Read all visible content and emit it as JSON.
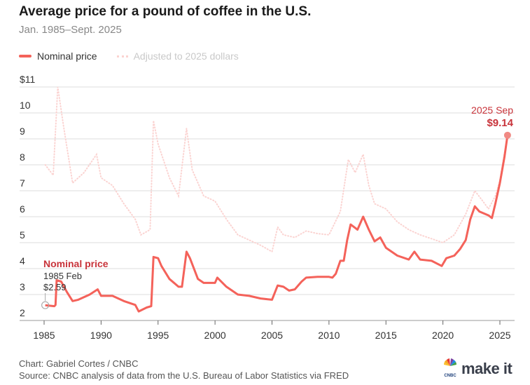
{
  "title": "Average price for a pound of coffee in the U.S.",
  "subtitle": "Jan. 1985–Sept. 2025",
  "footer": {
    "credit": "Chart: Gabriel Cortes / CNBC",
    "source": "Source: CNBC analysis of data from the U.S. Bureau of Labor Statistics via FRED",
    "logo": "make it",
    "logo_small": "CNBC"
  },
  "chart_data": {
    "type": "line",
    "title": "Average price for a pound of coffee in the U.S.",
    "xlim": [
      1985,
      2025.8
    ],
    "ylim": [
      2,
      11
    ],
    "grid": true,
    "legend": "top-left",
    "x_ticks": [
      "1985",
      "1990",
      "1995",
      "2000",
      "2005",
      "2010",
      "2015",
      "2020",
      "2025"
    ],
    "y_ticks": [
      "$11",
      "10",
      "9",
      "8",
      "7",
      "6",
      "5",
      "4",
      "3",
      "2"
    ],
    "colors": {
      "nominal": "#f4625a",
      "adjusted": "#fbd3d1",
      "annotation": "#c8333a"
    },
    "series": [
      {
        "name": "Nominal price",
        "style": "solid",
        "points": [
          [
            1985.1,
            2.59
          ],
          [
            1985.9,
            2.55
          ],
          [
            1986.0,
            2.6
          ],
          [
            1986.1,
            3.55
          ],
          [
            1986.5,
            3.5
          ],
          [
            1987.0,
            3.1
          ],
          [
            1987.5,
            2.75
          ],
          [
            1988,
            2.8
          ],
          [
            1989,
            3.0
          ],
          [
            1989.7,
            3.2
          ],
          [
            1990,
            2.95
          ],
          [
            1991,
            2.95
          ],
          [
            1992,
            2.75
          ],
          [
            1993,
            2.6
          ],
          [
            1993.3,
            2.35
          ],
          [
            1994,
            2.5
          ],
          [
            1994.4,
            2.55
          ],
          [
            1994.6,
            4.45
          ],
          [
            1995,
            4.4
          ],
          [
            1995.3,
            4.1
          ],
          [
            1996,
            3.6
          ],
          [
            1996.8,
            3.3
          ],
          [
            1997.1,
            3.3
          ],
          [
            1997.5,
            4.65
          ],
          [
            1997.8,
            4.4
          ],
          [
            1998.5,
            3.6
          ],
          [
            1999,
            3.45
          ],
          [
            2000,
            3.45
          ],
          [
            2000.2,
            3.65
          ],
          [
            2001,
            3.3
          ],
          [
            2002,
            3.0
          ],
          [
            2003,
            2.95
          ],
          [
            2004,
            2.85
          ],
          [
            2005,
            2.8
          ],
          [
            2005.5,
            3.35
          ],
          [
            2006,
            3.3
          ],
          [
            2006.5,
            3.15
          ],
          [
            2007,
            3.2
          ],
          [
            2007.6,
            3.5
          ],
          [
            2008,
            3.65
          ],
          [
            2009,
            3.68
          ],
          [
            2010,
            3.68
          ],
          [
            2010.3,
            3.65
          ],
          [
            2010.6,
            3.8
          ],
          [
            2011,
            4.3
          ],
          [
            2011.3,
            4.3
          ],
          [
            2011.6,
            5.1
          ],
          [
            2011.9,
            5.7
          ],
          [
            2012.5,
            5.5
          ],
          [
            2013,
            6.0
          ],
          [
            2013.5,
            5.5
          ],
          [
            2014,
            5.05
          ],
          [
            2014.5,
            5.2
          ],
          [
            2015,
            4.8
          ],
          [
            2016,
            4.5
          ],
          [
            2017,
            4.35
          ],
          [
            2017.5,
            4.65
          ],
          [
            2018,
            4.35
          ],
          [
            2019,
            4.3
          ],
          [
            2019.9,
            4.1
          ],
          [
            2020.3,
            4.4
          ],
          [
            2021,
            4.5
          ],
          [
            2021.5,
            4.75
          ],
          [
            2022,
            5.1
          ],
          [
            2022.4,
            5.9
          ],
          [
            2022.8,
            6.4
          ],
          [
            2023.2,
            6.2
          ],
          [
            2024,
            6.05
          ],
          [
            2024.3,
            5.95
          ],
          [
            2024.6,
            6.5
          ],
          [
            2025,
            7.3
          ],
          [
            2025.4,
            8.3
          ],
          [
            2025.67,
            9.14
          ]
        ]
      },
      {
        "name": "Adjusted to 2025 dollars",
        "style": "dotted",
        "points": [
          [
            1985.1,
            8.0
          ],
          [
            1985.8,
            7.6
          ],
          [
            1986.2,
            11.0
          ],
          [
            1986.7,
            9.5
          ],
          [
            1987.5,
            7.3
          ],
          [
            1988.5,
            7.7
          ],
          [
            1989.6,
            8.4
          ],
          [
            1990,
            7.5
          ],
          [
            1991,
            7.2
          ],
          [
            1992,
            6.5
          ],
          [
            1993,
            5.9
          ],
          [
            1993.5,
            5.3
          ],
          [
            1994.3,
            5.5
          ],
          [
            1994.6,
            9.7
          ],
          [
            1995,
            8.8
          ],
          [
            1996,
            7.5
          ],
          [
            1996.8,
            6.8
          ],
          [
            1997.5,
            9.4
          ],
          [
            1998,
            7.8
          ],
          [
            1999,
            6.8
          ],
          [
            2000,
            6.6
          ],
          [
            2001,
            5.9
          ],
          [
            2002,
            5.3
          ],
          [
            2003,
            5.1
          ],
          [
            2004,
            4.9
          ],
          [
            2005,
            4.65
          ],
          [
            2005.5,
            5.6
          ],
          [
            2006,
            5.3
          ],
          [
            2007,
            5.2
          ],
          [
            2008,
            5.45
          ],
          [
            2009,
            5.35
          ],
          [
            2010,
            5.3
          ],
          [
            2011,
            6.2
          ],
          [
            2011.7,
            8.2
          ],
          [
            2012.3,
            7.7
          ],
          [
            2013,
            8.4
          ],
          [
            2013.5,
            7.2
          ],
          [
            2014,
            6.5
          ],
          [
            2015,
            6.3
          ],
          [
            2016,
            5.8
          ],
          [
            2017,
            5.5
          ],
          [
            2018,
            5.3
          ],
          [
            2019,
            5.15
          ],
          [
            2020,
            5.0
          ],
          [
            2021,
            5.3
          ],
          [
            2022,
            6.1
          ],
          [
            2022.8,
            7.0
          ],
          [
            2023.5,
            6.6
          ],
          [
            2024,
            6.3
          ],
          [
            2024.6,
            6.8
          ],
          [
            2025,
            7.4
          ],
          [
            2025.67,
            9.14
          ]
        ]
      }
    ],
    "annotations": [
      {
        "label": "Nominal price",
        "date": "1985 Feb",
        "value": "$2.59",
        "x": 1985.1,
        "y": 2.59
      },
      {
        "date": "2025 Sep",
        "value": "$9.14",
        "x": 2025.67,
        "y": 9.14
      }
    ]
  }
}
